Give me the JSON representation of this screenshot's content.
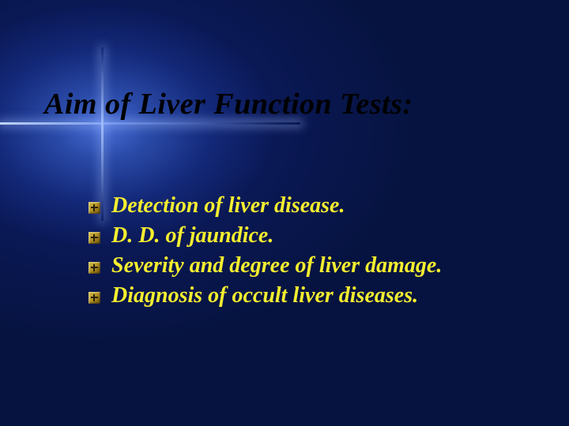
{
  "colors": {
    "title": "#000000",
    "body_text": "#f5ee2f",
    "bg_center": "#4a6fd8",
    "bg_edge": "#061340",
    "bullet_face": "#d9c24a"
  },
  "typography": {
    "family": "Times New Roman",
    "style": "italic",
    "title_fontsize_pt": 29,
    "body_fontsize_pt": 21,
    "weight": "bold"
  },
  "title": "Aim of Liver Function Tests:",
  "bullets": [
    "Detection of liver disease.",
    "D. D. of jaundice.",
    "Severity and degree of liver damage.",
    "Diagnosis of occult liver diseases."
  ]
}
